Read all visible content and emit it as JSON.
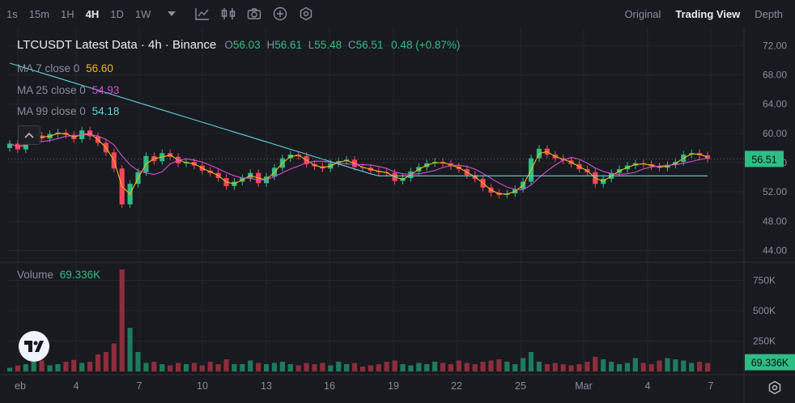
{
  "toolbar": {
    "timeframes": [
      "1s",
      "15m",
      "1H",
      "4H",
      "1D",
      "1W"
    ],
    "active_timeframe": "4H",
    "views": [
      "Original",
      "Trading View",
      "Depth"
    ],
    "active_view": "Trading View"
  },
  "legend": {
    "symbol_line": "LTCUSDT Latest Data · 4h · Binance",
    "open_label": "O",
    "open": "56.03",
    "high_label": "H",
    "high": "56.61",
    "low_label": "L",
    "low": "55.48",
    "close_label": "C",
    "close": "56.51",
    "change": "0.48 (+0.87%)",
    "ma7_label": "MA 7 close 0",
    "ma7_value": "56.60",
    "ma25_label": "MA 25 close 0",
    "ma25_value": "54.93",
    "ma99_label": "MA 99 close 0",
    "ma99_value": "54.18",
    "volume_label": "Volume",
    "volume_value": "69.336K"
  },
  "colors": {
    "up": "#2ebd85",
    "down": "#f6465d",
    "ma7": "#f0b90b",
    "ma25": "#d54dd6",
    "ma99": "#5fd3d9",
    "price_tag": "#2ebd85",
    "volume_up": "#1f7a5e",
    "volume_down": "#8c2e3c"
  },
  "chart_data": {
    "type": "candlestick",
    "price_axis_ticks": [
      "72.00",
      "68.00",
      "64.00",
      "60.00",
      "56.00",
      "52.00",
      "48.00",
      "44.00"
    ],
    "price_ylim": [
      42.4,
      73.8
    ],
    "volume_axis_ticks": [
      "750K",
      "500K",
      "250K"
    ],
    "volume_ylim": [
      0,
      900000
    ],
    "last_price_label": "56.51",
    "last_volume_label": "69.336K",
    "x_ticks": [
      "eb",
      "4",
      "7",
      "10",
      "13",
      "16",
      "19",
      "22",
      "25",
      "Mar",
      "4",
      "7"
    ],
    "series_close": [
      58.6,
      57.8,
      58.9,
      59.7,
      59.3,
      59.9,
      60.1,
      59.8,
      59.2,
      60.4,
      59.6,
      58.7,
      57.4,
      55.2,
      50.3,
      53.1,
      54.7,
      56.9,
      56.2,
      57.3,
      56.8,
      55.9,
      56.1,
      55.6,
      54.9,
      54.6,
      53.9,
      52.8,
      53.4,
      53.9,
      54.6,
      53.2,
      54.1,
      55.3,
      56.6,
      57.1,
      56.9,
      55.8,
      55.5,
      55.2,
      55.9,
      56.2,
      56.4,
      55.4,
      55.3,
      54.9,
      54.7,
      54.6,
      53.5,
      53.9,
      54.8,
      55.4,
      55.9,
      56.1,
      55.9,
      55.5,
      55.1,
      54.3,
      53.8,
      52.6,
      51.9,
      51.6,
      51.8,
      52.4,
      53.4,
      56.6,
      57.9,
      57.1,
      56.6,
      56.3,
      55.8,
      55.1,
      54.7,
      53.1,
      53.8,
      54.6,
      55.1,
      55.6,
      55.9,
      55.8,
      55.5,
      55.3,
      55.7,
      56.1,
      57.1,
      57.3,
      57.0,
      56.5
    ],
    "series_volume": [
      30000,
      50000,
      60000,
      80000,
      90000,
      50000,
      60000,
      80000,
      95000,
      70000,
      80000,
      140000,
      160000,
      230000,
      840000,
      360000,
      160000,
      70000,
      80000,
      60000,
      50000,
      70000,
      60000,
      70000,
      50000,
      80000,
      60000,
      100000,
      60000,
      60000,
      90000,
      70000,
      60000,
      70000,
      80000,
      60000,
      50000,
      70000,
      60000,
      70000,
      50000,
      80000,
      60000,
      70000,
      40000,
      50000,
      60000,
      80000,
      90000,
      60000,
      50000,
      70000,
      60000,
      80000,
      70000,
      60000,
      90000,
      70000,
      60000,
      80000,
      90000,
      100000,
      80000,
      60000,
      110000,
      160000,
      80000,
      60000,
      70000,
      60000,
      50000,
      60000,
      80000,
      120000,
      100000,
      80000,
      60000,
      70000,
      110000,
      70000,
      60000,
      90000,
      110000,
      100000,
      90000,
      70000,
      80000,
      69336
    ]
  }
}
